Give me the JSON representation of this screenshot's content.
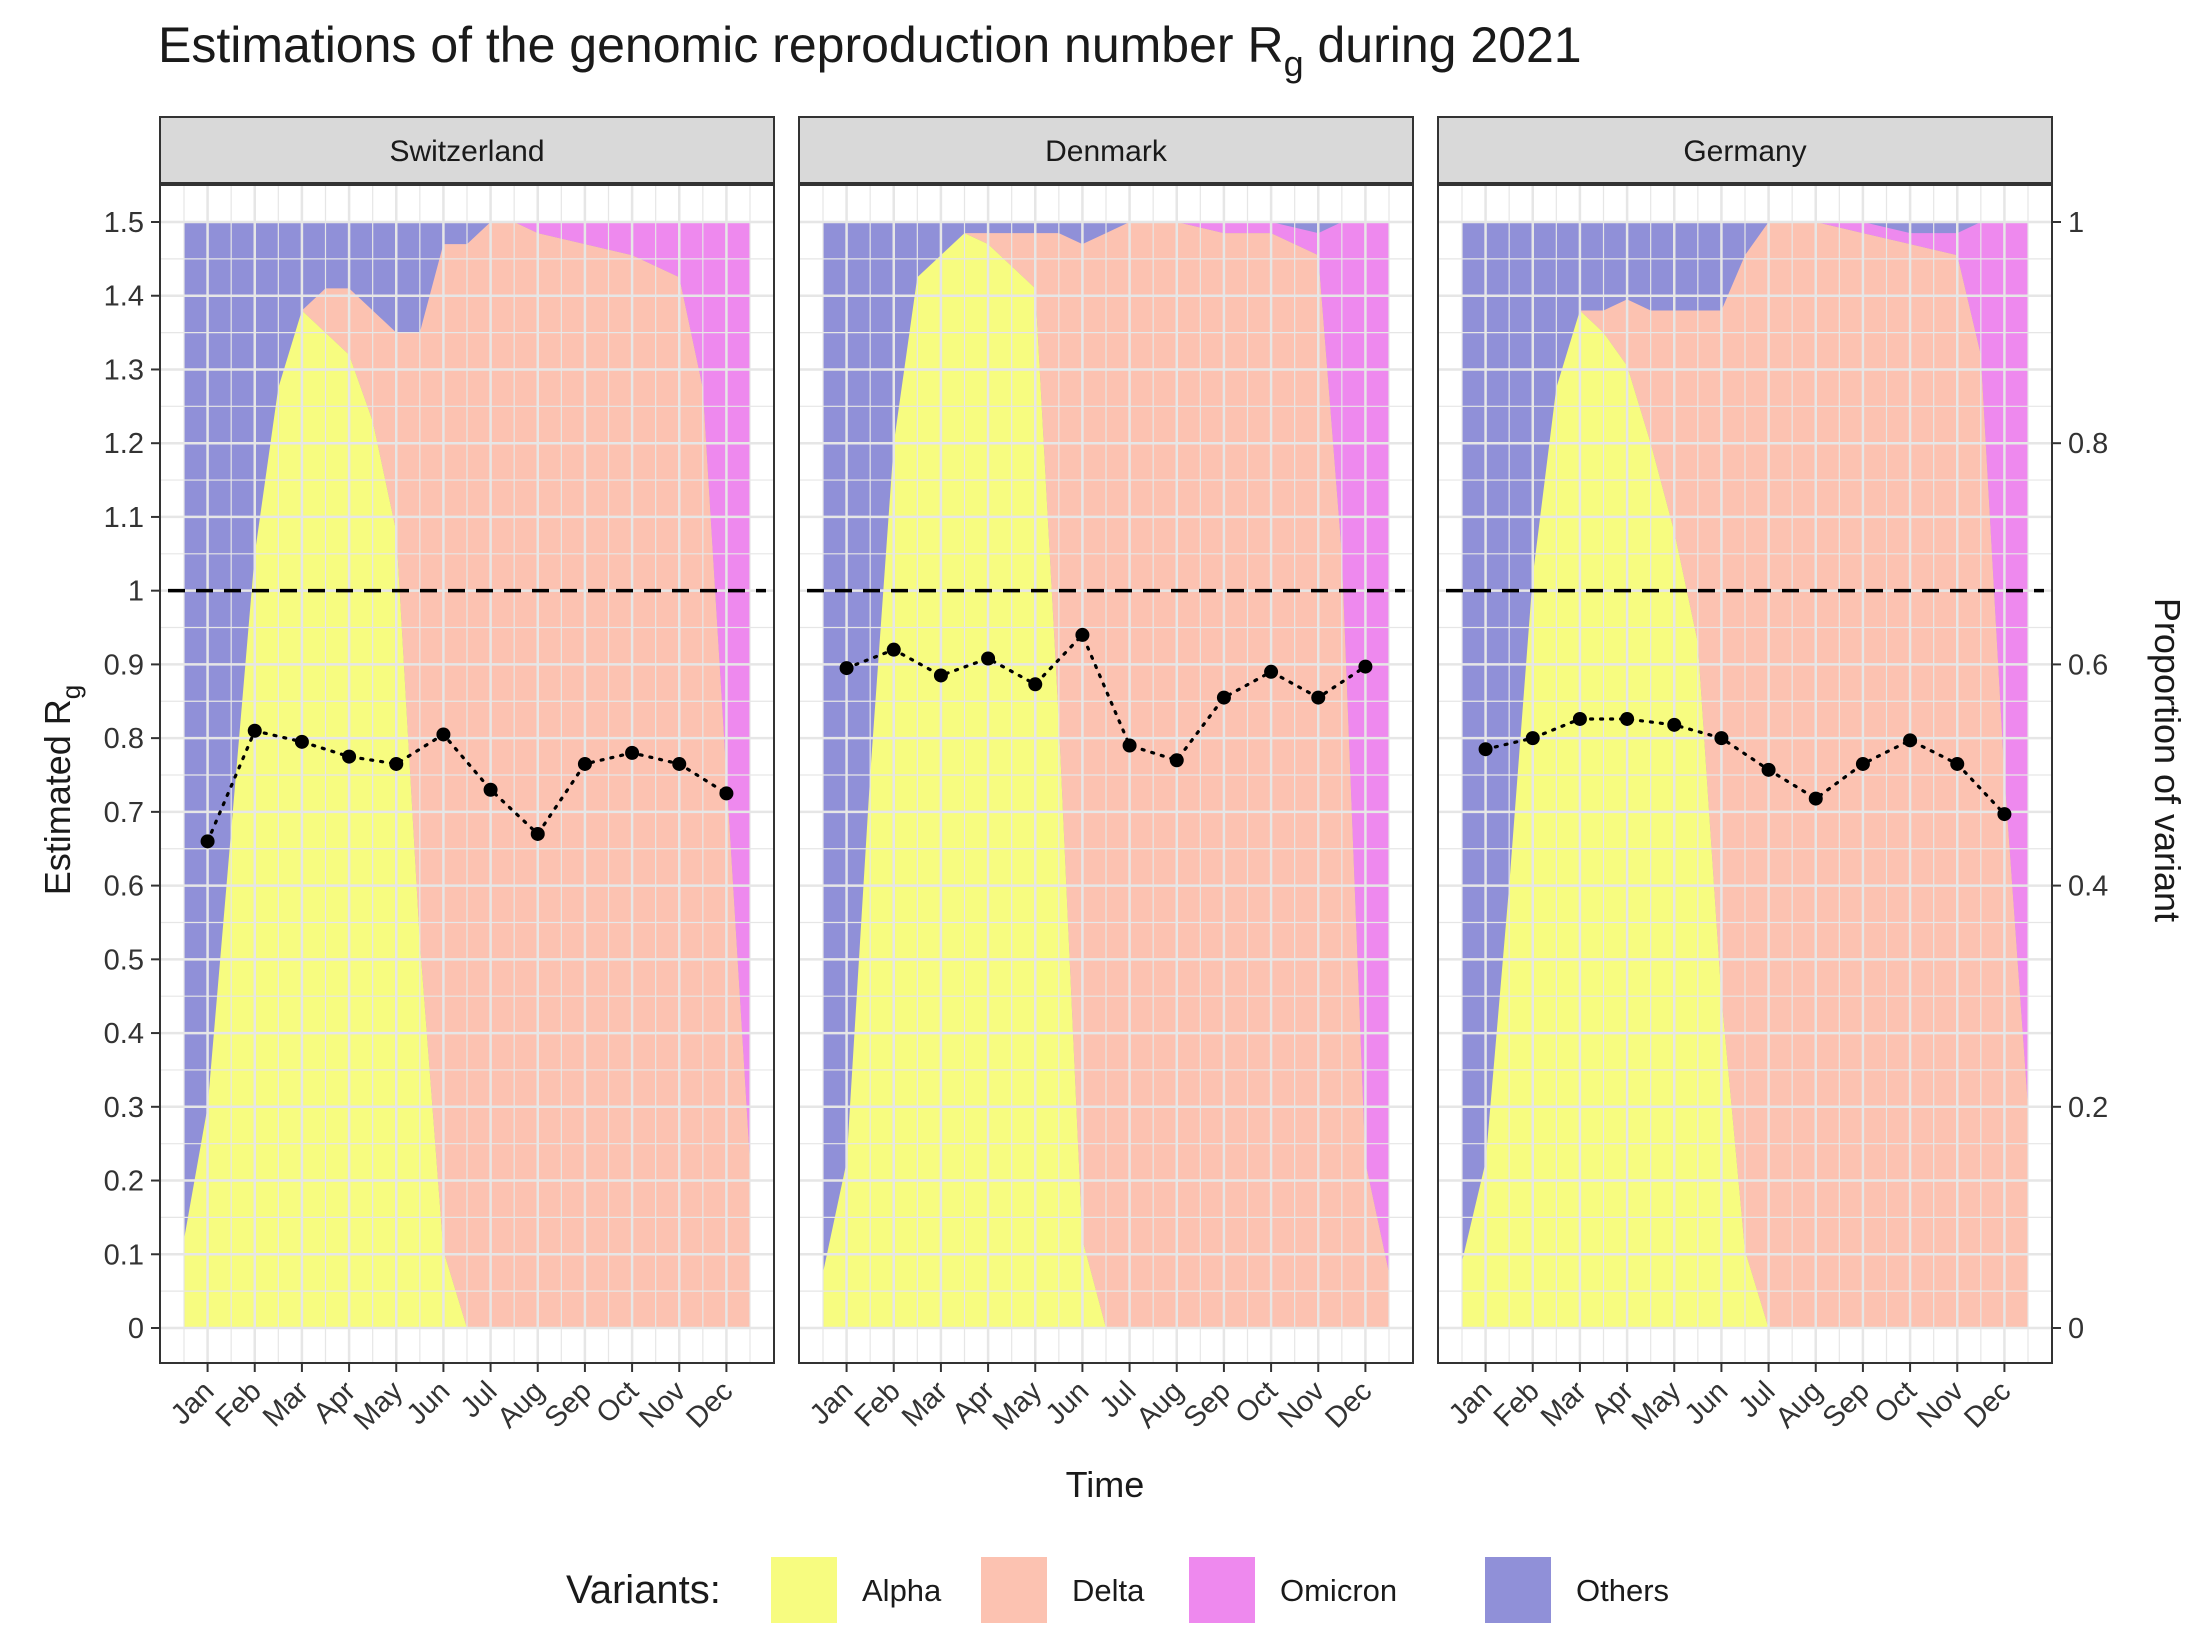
{
  "title": {
    "prefix": "Estimations of the genomic reproduction number R",
    "subscript": "g",
    "suffix": " during 2021"
  },
  "axes": {
    "x_title": "Time",
    "y_left_title_main": "Estimated R",
    "y_left_title_sub": "g",
    "y_right_title": "Proportion of variant"
  },
  "legend": {
    "title": "Variants:",
    "items": [
      {
        "label": "Alpha",
        "color": "#F7FC80"
      },
      {
        "label": "Delta",
        "color": "#FCC2B1"
      },
      {
        "label": "Omicron",
        "color": "#EE89EE"
      },
      {
        "label": "Others",
        "color": "#9090D8"
      }
    ]
  },
  "chart_data": {
    "type": "area",
    "description_of_layers": "stacked variant proportions (right axis) overlaid with dotted line of monthly Rg estimates (left axis)",
    "months": [
      "Jan",
      "Feb",
      "Mar",
      "Apr",
      "May",
      "Jun",
      "Jul",
      "Aug",
      "Sep",
      "Oct",
      "Nov",
      "Dec"
    ],
    "y_left": {
      "range": [
        0,
        1.5
      ],
      "ticks": [
        "0",
        "0.1",
        "0.2",
        "0.3",
        "0.4",
        "0.5",
        "0.6",
        "0.7",
        "0.8",
        "0.9",
        "1",
        "1.1",
        "1.2",
        "1.3",
        "1.4",
        "1.5"
      ]
    },
    "y_right": {
      "range": [
        0,
        1
      ],
      "ticks": [
        "0",
        "0.2",
        "0.4",
        "0.6",
        "0.8",
        "1"
      ]
    },
    "reference_line": 1,
    "grid": true,
    "legend_position": "bottom",
    "panels": [
      {
        "country": "Switzerland",
        "proportion_x": [
          0.5,
          1,
          1.5,
          2,
          2.5,
          3,
          3.5,
          4,
          4.5,
          5,
          5.5,
          6,
          6.5,
          7,
          7.5,
          8,
          9,
          10,
          11,
          11.5,
          12,
          12.5
        ],
        "alpha": [
          0.08,
          0.2,
          0.45,
          0.7,
          0.85,
          0.92,
          0.9,
          0.88,
          0.82,
          0.72,
          0.35,
          0.07,
          0,
          0,
          0,
          0,
          0,
          0,
          0,
          0,
          0,
          0
        ],
        "delta": [
          0,
          0,
          0,
          0,
          0,
          0,
          0.04,
          0.06,
          0.1,
          0.18,
          0.55,
          0.91,
          0.98,
          1.0,
          1.0,
          0.99,
          0.98,
          0.97,
          0.95,
          0.85,
          0.5,
          0.15
        ],
        "omicron": [
          0,
          0,
          0,
          0,
          0,
          0,
          0,
          0,
          0,
          0,
          0,
          0,
          0,
          0,
          0,
          0.01,
          0.02,
          0.03,
          0.05,
          0.15,
          0.5,
          0.85
        ],
        "rg": [
          0.66,
          0.81,
          0.795,
          0.775,
          0.765,
          0.805,
          0.73,
          0.67,
          0.765,
          0.78,
          0.765,
          0.725
        ]
      },
      {
        "country": "Denmark",
        "proportion_x": [
          0.5,
          1,
          1.5,
          2,
          2.5,
          3,
          3.5,
          4,
          4.5,
          5,
          5.5,
          6,
          6.5,
          7,
          7.5,
          8,
          9,
          10,
          11,
          11.5,
          12,
          12.5
        ],
        "alpha": [
          0.05,
          0.15,
          0.5,
          0.8,
          0.95,
          0.97,
          0.99,
          0.98,
          0.96,
          0.94,
          0.55,
          0.08,
          0,
          0,
          0,
          0,
          0,
          0,
          0,
          0,
          0,
          0
        ],
        "delta": [
          0,
          0,
          0,
          0,
          0,
          0,
          0,
          0.01,
          0.03,
          0.05,
          0.44,
          0.9,
          0.99,
          1.0,
          1.0,
          1.0,
          0.99,
          0.99,
          0.97,
          0.7,
          0.15,
          0.05
        ],
        "omicron": [
          0,
          0,
          0,
          0,
          0,
          0,
          0,
          0,
          0,
          0,
          0,
          0,
          0,
          0,
          0,
          0,
          0.01,
          0.01,
          0.02,
          0.3,
          0.85,
          0.95
        ],
        "rg": [
          0.895,
          0.92,
          0.885,
          0.908,
          0.873,
          0.94,
          0.79,
          0.77,
          0.855,
          0.89,
          0.855,
          0.897
        ]
      },
      {
        "country": "Germany",
        "proportion_x": [
          0.5,
          1,
          1.5,
          2,
          2.5,
          3,
          3.5,
          4,
          4.5,
          5,
          5.5,
          6,
          6.5,
          7,
          7.5,
          8,
          9,
          10,
          11,
          11.5,
          12,
          12.5
        ],
        "alpha": [
          0.06,
          0.15,
          0.4,
          0.68,
          0.85,
          0.92,
          0.9,
          0.87,
          0.8,
          0.72,
          0.62,
          0.3,
          0.07,
          0,
          0,
          0,
          0,
          0,
          0,
          0,
          0,
          0
        ],
        "delta": [
          0,
          0,
          0,
          0,
          0,
          0,
          0.02,
          0.06,
          0.12,
          0.2,
          0.3,
          0.62,
          0.9,
          1.0,
          1.0,
          1.0,
          0.99,
          0.98,
          0.97,
          0.88,
          0.5,
          0.2
        ],
        "omicron": [
          0,
          0,
          0,
          0,
          0,
          0,
          0,
          0,
          0,
          0,
          0,
          0,
          0,
          0,
          0,
          0,
          0.01,
          0.01,
          0.02,
          0.12,
          0.5,
          0.8
        ],
        "rg": [
          0.785,
          0.8,
          0.826,
          0.826,
          0.818,
          0.8,
          0.757,
          0.718,
          0.765,
          0.797,
          0.765,
          0.697
        ]
      }
    ]
  }
}
